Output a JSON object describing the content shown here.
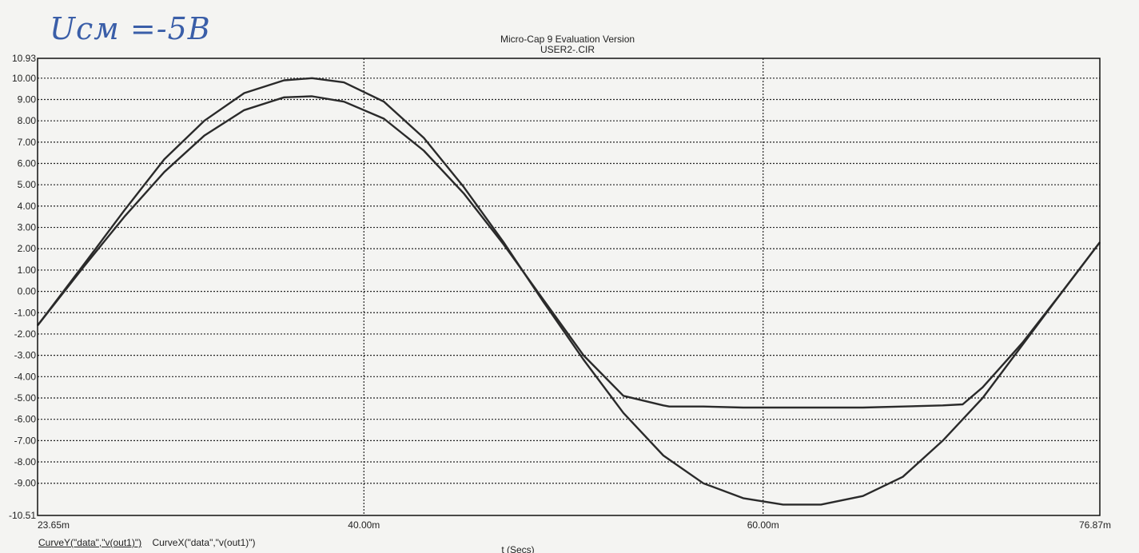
{
  "handwritten_note": "Uсм =-5В",
  "chart_data": {
    "type": "line",
    "title": "Micro-Cap 9 Evaluation Version",
    "subtitle": "USER2-.CIR",
    "xlabel": "t (Secs)",
    "x_unit_label": "t (Secs)",
    "xlim": [
      23.65,
      76.87
    ],
    "ylim": [
      -10.51,
      10.93
    ],
    "x_tick_values": [
      23.65,
      40.0,
      60.0,
      76.87
    ],
    "x_tick_labels": [
      "23.65m",
      "40.00m",
      "60.00m",
      "76.87m"
    ],
    "y_tick_values": [
      10.93,
      10,
      9,
      8,
      7,
      6,
      5,
      4,
      3,
      2,
      1,
      0,
      -1,
      -2,
      -3,
      -4,
      -5,
      -6,
      -7,
      -8,
      -9,
      -10.51
    ],
    "y_tick_labels": [
      "10.93",
      "10.00",
      "9.00",
      "8.00",
      "7.00",
      "6.00",
      "5.00",
      "4.00",
      "3.00",
      "2.00",
      "1.00",
      "0.00",
      "-1.00",
      "-2.00",
      "-3.00",
      "-4.00",
      "-5.00",
      "-6.00",
      "-7.00",
      "-8.00",
      "-9.00",
      "-10.51"
    ],
    "grid": true,
    "series": [
      {
        "x": [
          23.65,
          26,
          28,
          30,
          32,
          34,
          36,
          37.4,
          39,
          41,
          43,
          45,
          47,
          49,
          51,
          53,
          55,
          57,
          59,
          61,
          62.9,
          65,
          67,
          69,
          71,
          73,
          75,
          76.87
        ],
        "y": [
          -1.6,
          1.3,
          3.8,
          6.2,
          8.0,
          9.3,
          9.9,
          10.0,
          9.8,
          8.9,
          7.2,
          4.9,
          2.3,
          -0.5,
          -3.2,
          -5.7,
          -7.7,
          -9.0,
          -9.7,
          -10.0,
          -10.0,
          -9.6,
          -8.7,
          -7.0,
          -5.0,
          -2.5,
          0.0,
          2.3
        ]
      },
      {
        "x": [
          23.65,
          26,
          28,
          30,
          32,
          34,
          36,
          37.4,
          39,
          41,
          43,
          45,
          47,
          49,
          51,
          53,
          55,
          55.3,
          57,
          59,
          61,
          63,
          65,
          67,
          69,
          70.0,
          71,
          73,
          75,
          76.87
        ],
        "y": [
          -1.6,
          1.2,
          3.5,
          5.6,
          7.3,
          8.5,
          9.1,
          9.15,
          8.9,
          8.1,
          6.6,
          4.6,
          2.2,
          -0.4,
          -3.0,
          -4.9,
          -5.35,
          -5.4,
          -5.4,
          -5.45,
          -5.45,
          -5.45,
          -5.45,
          -5.4,
          -5.35,
          -5.3,
          -4.5,
          -2.4,
          0.0,
          2.3
        ]
      }
    ],
    "legend": {
      "entries": [
        "CurveY(\"data\",\"v(out1)\")",
        "CurveX(\"data\",\"v(out1)\")"
      ],
      "placement": "bottom-left"
    }
  }
}
